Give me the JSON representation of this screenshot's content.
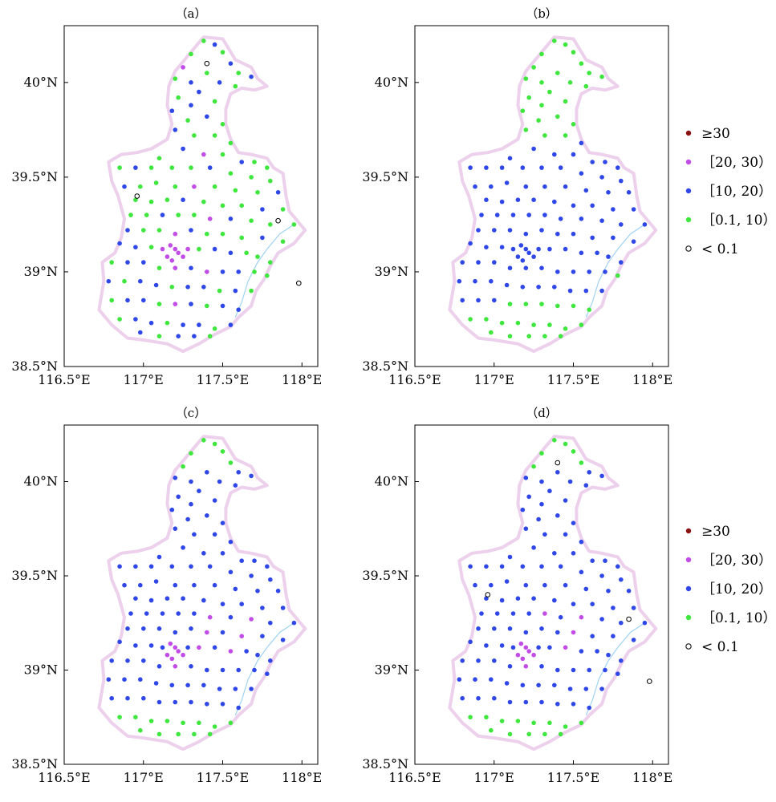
{
  "colors": {
    "ge30": "#8b1010",
    "c20_30": "#c24ce6",
    "c10_20": "#2f47e6",
    "c01_10": "#3ee63e",
    "lt01": "#ffffff",
    "boundary": "#ecd0ec",
    "coast": "#9fd3f2"
  },
  "axes": {
    "x_ticks": [
      "116.5°E",
      "117°E",
      "117.5°E",
      "118°E"
    ],
    "y_ticks": [
      "38.5°N",
      "39°N",
      "39.5°N",
      "40°N"
    ],
    "xlim": [
      116.5,
      118.1
    ],
    "ylim": [
      38.5,
      40.3
    ]
  },
  "legend": [
    {
      "key": "ge30",
      "label": "≥30"
    },
    {
      "key": "c20_30",
      "label": "［20, 30）"
    },
    {
      "key": "c10_20",
      "label": "［10, 20）"
    },
    {
      "key": "c01_10",
      "label": "［0.1, 10）"
    },
    {
      "key": "lt01",
      "label": "< 0.1"
    }
  ],
  "panels": [
    {
      "title": "（a）",
      "scheme": "a"
    },
    {
      "title": "（b）",
      "scheme": "b"
    },
    {
      "title": "（c）",
      "scheme": "c"
    },
    {
      "title": "（d）",
      "scheme": "d"
    }
  ],
  "chart_data": {
    "type": "scatter",
    "boundary_lonlat": [
      [
        117.38,
        40.24
      ],
      [
        117.5,
        40.23
      ],
      [
        117.58,
        40.12
      ],
      [
        117.68,
        40.08
      ],
      [
        117.72,
        40.02
      ],
      [
        117.78,
        39.98
      ],
      [
        117.7,
        39.96
      ],
      [
        117.62,
        39.97
      ],
      [
        117.55,
        39.94
      ],
      [
        117.52,
        39.86
      ],
      [
        117.52,
        39.78
      ],
      [
        117.55,
        39.7
      ],
      [
        117.6,
        39.63
      ],
      [
        117.68,
        39.62
      ],
      [
        117.78,
        39.6
      ],
      [
        117.82,
        39.55
      ],
      [
        117.88,
        39.52
      ],
      [
        117.9,
        39.4
      ],
      [
        117.92,
        39.32
      ],
      [
        118.02,
        39.22
      ],
      [
        117.95,
        39.15
      ],
      [
        117.85,
        39.1
      ],
      [
        117.8,
        39.03
      ],
      [
        117.76,
        38.96
      ],
      [
        117.71,
        38.9
      ],
      [
        117.68,
        38.82
      ],
      [
        117.6,
        38.76
      ],
      [
        117.55,
        38.71
      ],
      [
        117.45,
        38.67
      ],
      [
        117.35,
        38.62
      ],
      [
        117.25,
        38.58
      ],
      [
        117.15,
        38.62
      ],
      [
        117.0,
        38.64
      ],
      [
        116.9,
        38.65
      ],
      [
        116.8,
        38.72
      ],
      [
        116.72,
        38.8
      ],
      [
        116.75,
        38.95
      ],
      [
        116.74,
        39.05
      ],
      [
        116.82,
        39.1
      ],
      [
        116.86,
        39.18
      ],
      [
        116.88,
        39.28
      ],
      [
        116.84,
        39.4
      ],
      [
        116.8,
        39.48
      ],
      [
        116.78,
        39.58
      ],
      [
        116.86,
        39.62
      ],
      [
        116.96,
        39.63
      ],
      [
        117.05,
        39.65
      ],
      [
        117.15,
        39.7
      ],
      [
        117.18,
        39.78
      ],
      [
        117.15,
        39.88
      ],
      [
        117.16,
        39.98
      ],
      [
        117.2,
        40.06
      ],
      [
        117.26,
        40.12
      ],
      [
        117.32,
        40.18
      ],
      [
        117.38,
        40.24
      ]
    ],
    "coast_lonlat": [
      [
        117.58,
        38.76
      ],
      [
        117.62,
        38.84
      ],
      [
        117.66,
        38.95
      ],
      [
        117.72,
        39.05
      ],
      [
        117.78,
        39.12
      ],
      [
        117.86,
        39.2
      ],
      [
        117.95,
        39.25
      ]
    ],
    "stations_lonlat": [
      [
        117.38,
        40.22
      ],
      [
        117.45,
        40.2
      ],
      [
        117.5,
        40.16
      ],
      [
        117.55,
        40.1
      ],
      [
        117.6,
        40.05
      ],
      [
        117.68,
        40.03
      ],
      [
        117.3,
        40.15
      ],
      [
        117.25,
        40.08
      ],
      [
        117.2,
        40.02
      ],
      [
        117.3,
        40.0
      ],
      [
        117.4,
        40.05
      ],
      [
        117.48,
        40.0
      ],
      [
        117.58,
        39.98
      ],
      [
        117.35,
        39.95
      ],
      [
        117.22,
        39.92
      ],
      [
        117.3,
        39.88
      ],
      [
        117.45,
        39.9
      ],
      [
        117.18,
        39.85
      ],
      [
        117.28,
        39.8
      ],
      [
        117.4,
        39.82
      ],
      [
        117.5,
        39.78
      ],
      [
        117.2,
        39.75
      ],
      [
        117.32,
        39.72
      ],
      [
        117.45,
        39.72
      ],
      [
        117.55,
        39.68
      ],
      [
        117.25,
        39.65
      ],
      [
        117.38,
        39.62
      ],
      [
        117.5,
        39.62
      ],
      [
        117.1,
        39.6
      ],
      [
        117.62,
        39.58
      ],
      [
        117.7,
        39.58
      ],
      [
        117.78,
        39.55
      ],
      [
        116.85,
        39.55
      ],
      [
        116.95,
        39.55
      ],
      [
        117.05,
        39.55
      ],
      [
        117.18,
        39.55
      ],
      [
        117.3,
        39.55
      ],
      [
        117.42,
        39.55
      ],
      [
        117.55,
        39.52
      ],
      [
        117.68,
        39.5
      ],
      [
        117.8,
        39.48
      ],
      [
        116.88,
        39.45
      ],
      [
        116.98,
        39.45
      ],
      [
        117.08,
        39.47
      ],
      [
        117.2,
        39.45
      ],
      [
        117.32,
        39.45
      ],
      [
        117.45,
        39.45
      ],
      [
        117.58,
        39.43
      ],
      [
        117.72,
        39.42
      ],
      [
        117.85,
        39.42
      ],
      [
        116.95,
        39.38
      ],
      [
        117.05,
        39.37
      ],
      [
        117.15,
        39.38
      ],
      [
        117.25,
        39.38
      ],
      [
        117.38,
        39.37
      ],
      [
        117.5,
        39.35
      ],
      [
        117.62,
        39.35
      ],
      [
        117.75,
        39.33
      ],
      [
        117.88,
        39.33
      ],
      [
        116.92,
        39.3
      ],
      [
        117.02,
        39.3
      ],
      [
        117.12,
        39.3
      ],
      [
        117.22,
        39.3
      ],
      [
        117.32,
        39.3
      ],
      [
        117.42,
        39.28
      ],
      [
        117.55,
        39.28
      ],
      [
        117.68,
        39.27
      ],
      [
        117.8,
        39.25
      ],
      [
        117.95,
        39.25
      ],
      [
        116.9,
        39.22
      ],
      [
        117.0,
        39.22
      ],
      [
        117.1,
        39.22
      ],
      [
        117.2,
        39.2
      ],
      [
        117.3,
        39.22
      ],
      [
        117.4,
        39.2
      ],
      [
        117.5,
        39.2
      ],
      [
        117.62,
        39.18
      ],
      [
        117.75,
        39.18
      ],
      [
        117.88,
        39.16
      ],
      [
        116.85,
        39.15
      ],
      [
        116.95,
        39.13
      ],
      [
        117.05,
        39.13
      ],
      [
        117.12,
        39.12
      ],
      [
        117.17,
        39.14
      ],
      [
        117.2,
        39.12
      ],
      [
        117.22,
        39.1
      ],
      [
        117.15,
        39.08
      ],
      [
        117.18,
        39.06
      ],
      [
        117.25,
        39.08
      ],
      [
        117.28,
        39.12
      ],
      [
        117.35,
        39.12
      ],
      [
        117.45,
        39.12
      ],
      [
        117.55,
        39.1
      ],
      [
        117.65,
        39.1
      ],
      [
        117.72,
        39.08
      ],
      [
        117.8,
        39.05
      ],
      [
        116.8,
        39.05
      ],
      [
        116.9,
        39.05
      ],
      [
        117.0,
        39.05
      ],
      [
        117.1,
        39.02
      ],
      [
        117.2,
        39.02
      ],
      [
        117.3,
        39.02
      ],
      [
        117.4,
        39.0
      ],
      [
        117.5,
        39.0
      ],
      [
        117.6,
        39.0
      ],
      [
        117.7,
        39.0
      ],
      [
        117.78,
        38.98
      ],
      [
        116.78,
        38.95
      ],
      [
        116.88,
        38.95
      ],
      [
        116.98,
        38.95
      ],
      [
        117.08,
        38.93
      ],
      [
        117.18,
        38.92
      ],
      [
        117.28,
        38.92
      ],
      [
        117.38,
        38.92
      ],
      [
        117.48,
        38.9
      ],
      [
        117.58,
        38.9
      ],
      [
        117.68,
        38.9
      ],
      [
        116.8,
        38.85
      ],
      [
        116.9,
        38.85
      ],
      [
        117.0,
        38.85
      ],
      [
        117.1,
        38.83
      ],
      [
        117.2,
        38.83
      ],
      [
        117.3,
        38.83
      ],
      [
        117.4,
        38.82
      ],
      [
        117.5,
        38.82
      ],
      [
        117.6,
        38.8
      ],
      [
        116.85,
        38.75
      ],
      [
        116.95,
        38.75
      ],
      [
        117.05,
        38.73
      ],
      [
        117.15,
        38.73
      ],
      [
        117.25,
        38.72
      ],
      [
        117.35,
        38.72
      ],
      [
        117.45,
        38.7
      ],
      [
        117.55,
        38.72
      ],
      [
        116.98,
        38.68
      ],
      [
        117.1,
        38.66
      ],
      [
        117.22,
        38.66
      ],
      [
        117.32,
        38.66
      ],
      [
        117.42,
        38.66
      ]
    ]
  }
}
